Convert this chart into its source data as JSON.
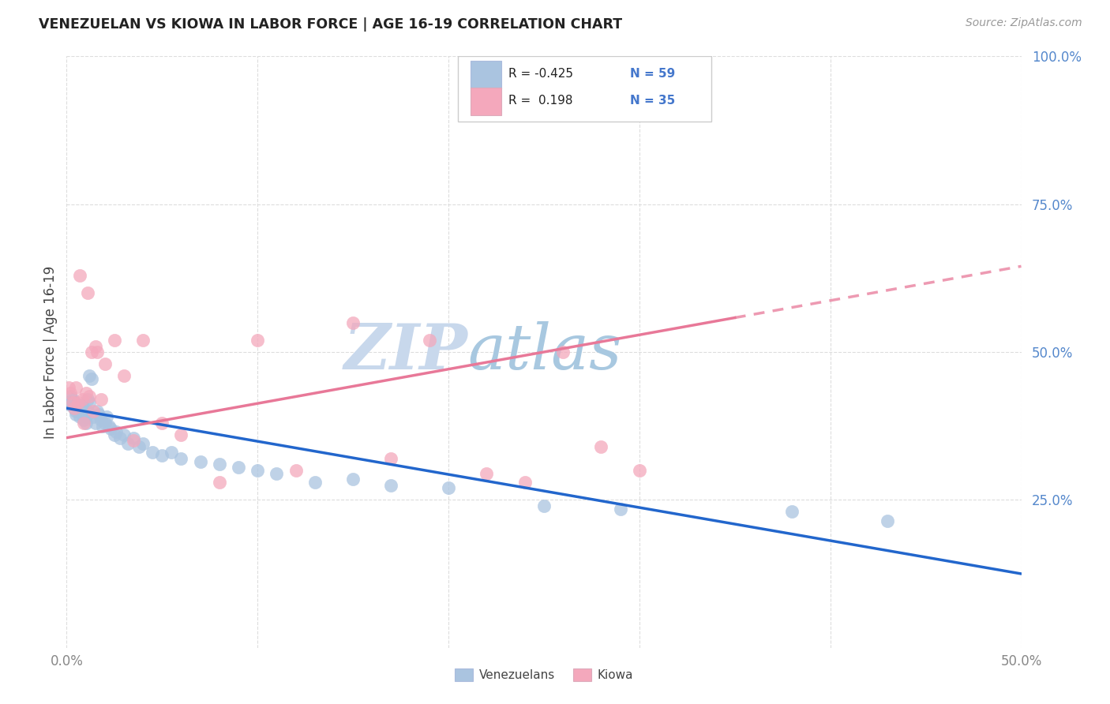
{
  "title": "VENEZUELAN VS KIOWA IN LABOR FORCE | AGE 16-19 CORRELATION CHART",
  "source": "Source: ZipAtlas.com",
  "ylabel": "In Labor Force | Age 16-19",
  "xlim": [
    0.0,
    0.5
  ],
  "ylim": [
    0.0,
    1.0
  ],
  "xtick_positions": [
    0.0,
    0.1,
    0.2,
    0.3,
    0.4,
    0.5
  ],
  "xticklabels": [
    "0.0%",
    "",
    "",
    "",
    "",
    "50.0%"
  ],
  "yticks_right": [
    0.25,
    0.5,
    0.75,
    1.0
  ],
  "yticklabels_right": [
    "25.0%",
    "50.0%",
    "75.0%",
    "100.0%"
  ],
  "venezuelan_color": "#aac4e0",
  "kiowa_color": "#f4a8bc",
  "trend_venezuelan_color": "#2266cc",
  "trend_kiowa_color": "#e87898",
  "watermark": "ZIPatlas",
  "watermark_color_zip": "#c8d8ec",
  "watermark_color_atlas": "#a8c8e0",
  "legend_R_venezuelan": "-0.425",
  "legend_N_venezuelan": "59",
  "legend_R_kiowa": "0.198",
  "legend_N_kiowa": "35",
  "background_color": "#ffffff",
  "grid_color": "#dddddd",
  "trend_ven_x0": 0.0,
  "trend_ven_y0": 0.405,
  "trend_ven_x1": 0.5,
  "trend_ven_y1": 0.125,
  "trend_kiowa_x0": 0.0,
  "trend_kiowa_y0": 0.355,
  "trend_kiowa_x1": 0.5,
  "trend_kiowa_y1": 0.645
}
